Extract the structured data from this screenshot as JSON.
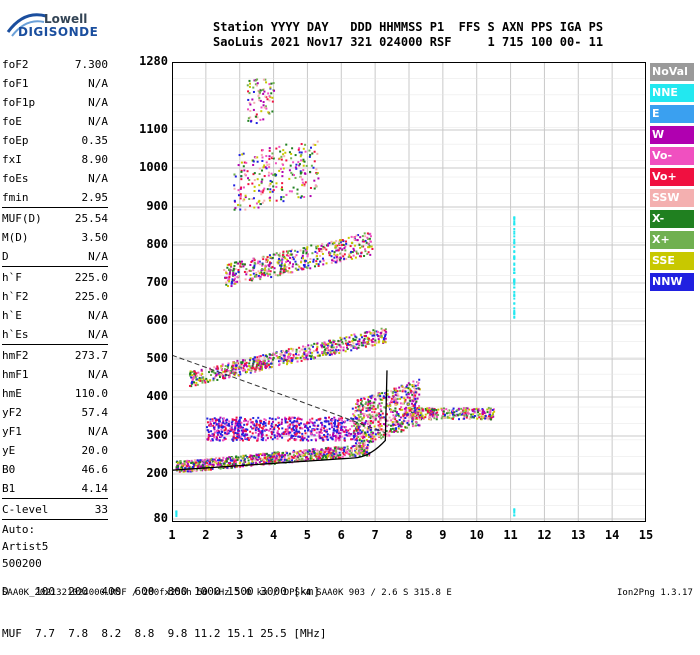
{
  "logo": {
    "top": "Lowell",
    "bottom": "DIGISONDE"
  },
  "header": {
    "line1": "Station YYYY DAY   DDD HHMMSS P1  FFS S AXN PPS IGA PS",
    "line2": "SaoLuis 2021 Nov17 321 024000 RSF     1 715 100 00- 11"
  },
  "params": {
    "group1": [
      {
        "k": "foF2",
        "v": "7.300"
      },
      {
        "k": "foF1",
        "v": "N/A"
      },
      {
        "k": "foF1p",
        "v": "N/A"
      },
      {
        "k": "foE",
        "v": "N/A"
      },
      {
        "k": "foEp",
        "v": "0.35"
      },
      {
        "k": "fxI",
        "v": "8.90"
      },
      {
        "k": "foEs",
        "v": "N/A"
      },
      {
        "k": "fmin",
        "v": "2.95"
      }
    ],
    "group2": [
      {
        "k": "MUF(D)",
        "v": "25.54"
      },
      {
        "k": "M(D)",
        "v": "3.50"
      },
      {
        "k": "D",
        "v": "N/A"
      }
    ],
    "group3": [
      {
        "k": "h`F",
        "v": "225.0"
      },
      {
        "k": "h`F2",
        "v": "225.0"
      },
      {
        "k": "h`E",
        "v": "N/A"
      },
      {
        "k": "h`Es",
        "v": "N/A"
      }
    ],
    "group4": [
      {
        "k": "hmF2",
        "v": "273.7"
      },
      {
        "k": "hmF1",
        "v": "N/A"
      },
      {
        "k": "hmE",
        "v": "110.0"
      },
      {
        "k": "yF2",
        "v": "57.4"
      },
      {
        "k": "yF1",
        "v": "N/A"
      },
      {
        "k": "yE",
        "v": "20.0"
      },
      {
        "k": "B0",
        "v": "46.6"
      },
      {
        "k": "B1",
        "v": "4.14"
      }
    ],
    "clevel": {
      "k": "C-level",
      "v": "33"
    },
    "auto": [
      "Auto:",
      "Artist5",
      "500200"
    ]
  },
  "plot": {
    "y_ticks": [
      "1280",
      "1100",
      "1000",
      "900",
      "800",
      "700",
      "600",
      "500",
      "400",
      "300",
      "200",
      "80"
    ],
    "x_ticks": [
      "1",
      "2",
      "3",
      "4",
      "5",
      "6",
      "7",
      "8",
      "9",
      "10",
      "11",
      "12",
      "13",
      "14",
      "15"
    ]
  },
  "legend": [
    {
      "label": "NoVal",
      "color": "#9a9a9a"
    },
    {
      "label": "NNE",
      "color": "#22e8f0"
    },
    {
      "label": "E",
      "color": "#3aa0f0"
    },
    {
      "label": "W",
      "color": "#b000b0"
    },
    {
      "label": "Vo-",
      "color": "#f050c0"
    },
    {
      "label": "Vo+",
      "color": "#f01040"
    },
    {
      "label": "SSW",
      "color": "#f4b0b0"
    },
    {
      "label": "X-",
      "color": "#208020"
    },
    {
      "label": "X+",
      "color": "#70b050"
    },
    {
      "label": "SSE",
      "color": "#c8c800"
    },
    {
      "label": "NNW",
      "color": "#2020e0"
    }
  ],
  "muf": {
    "line1": "D    100  200  400  600  800 1000 1500 3000 [km]",
    "line2": "MUF  7.7  7.8  8.2  8.8  9.8 11.2 15.1 25.5 [MHz]"
  },
  "footer": {
    "left": "SAA0K_2021321024000.RSF / 280fx256h 50 kHz 5.0 km / DPS-4 SAA0K 903 / 2.6 S 315.8 E",
    "right": "Ion2Png 1.3.17"
  }
}
